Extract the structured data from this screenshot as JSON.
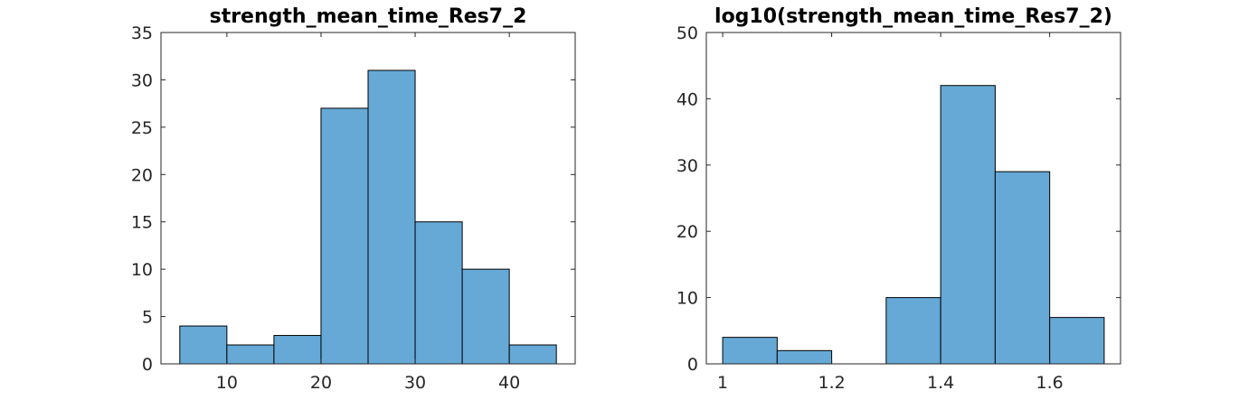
{
  "chart_data": [
    {
      "type": "bar",
      "subtype": "histogram",
      "title": "strength_mean_time_Res7_2",
      "xlabel": "",
      "ylabel": "",
      "bin_edges": [
        5,
        10,
        15,
        20,
        25,
        30,
        35,
        40,
        45
      ],
      "values": [
        4,
        2,
        3,
        27,
        31,
        15,
        10,
        2
      ],
      "xlim": [
        3,
        47
      ],
      "ylim": [
        0,
        35
      ],
      "xticks": [
        10,
        20,
        30,
        40
      ],
      "yticks": [
        0,
        5,
        10,
        15,
        20,
        25,
        30,
        35
      ],
      "bar_color": "#66A9D6",
      "grid": false
    },
    {
      "type": "bar",
      "subtype": "histogram",
      "title": "log10(strength_mean_time_Res7_2)",
      "xlabel": "",
      "ylabel": "",
      "bin_edges": [
        1.0,
        1.1,
        1.2,
        1.3,
        1.4,
        1.5,
        1.6,
        1.7
      ],
      "values": [
        4,
        2,
        0,
        10,
        42,
        29,
        7
      ],
      "xlim": [
        0.97,
        1.73
      ],
      "ylim": [
        0,
        50
      ],
      "xticks": [
        1,
        1.2,
        1.4,
        1.6
      ],
      "yticks": [
        0,
        10,
        20,
        30,
        40,
        50
      ],
      "bar_color": "#66A9D6",
      "grid": false
    }
  ]
}
